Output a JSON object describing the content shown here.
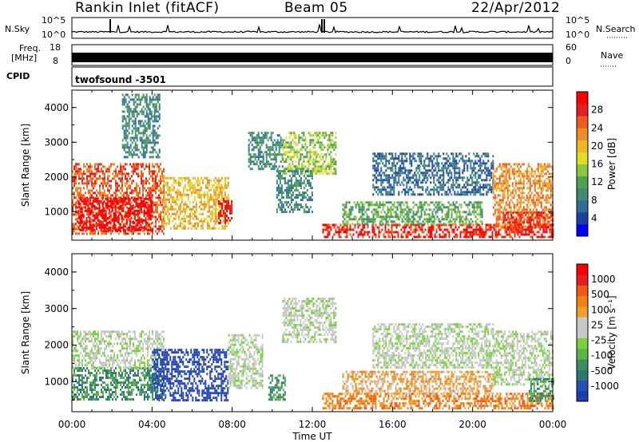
{
  "header": {
    "station": "Rankin Inlet (fitACF)",
    "beam": "Beam 05",
    "date": "22/Apr/2012"
  },
  "top_panels": {
    "nsky_label": "N.Sky",
    "nsky_ticks": [
      "10^5",
      "10^0"
    ],
    "nsearch_label": "N.Search",
    "nsearch_ticks": [
      "10^5",
      "10^0"
    ],
    "freq_label": "Freq.",
    "freq_unit": "[MHz]",
    "freq_ticks": [
      "18",
      "8"
    ],
    "nave_label": "Nave",
    "nave_ticks": [
      "60",
      "0"
    ],
    "cpid_label": "CPID",
    "cpid_value": "twofsound  -3501"
  },
  "chart_data": [
    {
      "type": "heatmap",
      "name": "power",
      "ylabel": "Slant Range [km]",
      "xlabel": "",
      "xlim": [
        "00:00",
        "24:00"
      ],
      "ylim": [
        180,
        4500
      ],
      "yticks": [
        1000,
        2000,
        3000,
        4000
      ],
      "xticks": [
        "00:00",
        "04:00",
        "08:00",
        "12:00",
        "16:00",
        "20:00",
        "00:00"
      ],
      "colorbar": {
        "label": "Power [dB]",
        "ticks": [
          "28",
          "24",
          "20",
          "16",
          "12",
          "8",
          "4"
        ],
        "colors": [
          "#0000ff",
          "#1f3fa0",
          "#2e6f9a",
          "#3f8a70",
          "#4fa050",
          "#8cc83c",
          "#e0dc28",
          "#f0b428",
          "#f08c28",
          "#f05a1e",
          "#e61e1e",
          "#ff0000"
        ]
      },
      "blobs": [
        {
          "t0": 0.0,
          "t1": 4.6,
          "r0": 400,
          "r1": 2400,
          "c": 9
        },
        {
          "t0": 0.3,
          "t1": 4.0,
          "r0": 500,
          "r1": 1400,
          "c": 11
        },
        {
          "t0": 4.5,
          "t1": 7.8,
          "r0": 500,
          "r1": 2000,
          "c": 7
        },
        {
          "t0": 7.3,
          "t1": 8.0,
          "r0": 700,
          "r1": 1400,
          "c": 11
        },
        {
          "t0": 2.5,
          "t1": 4.4,
          "r0": 2600,
          "r1": 4400,
          "c": 3
        },
        {
          "t0": 8.8,
          "t1": 10.5,
          "r0": 2200,
          "r1": 3300,
          "c": 3
        },
        {
          "t0": 10.5,
          "t1": 13.2,
          "r0": 2100,
          "r1": 3300,
          "c": 5
        },
        {
          "t0": 10.2,
          "t1": 12.0,
          "r0": 1000,
          "r1": 2200,
          "c": 3
        },
        {
          "t0": 12.5,
          "t1": 24.0,
          "r0": 250,
          "r1": 650,
          "c": 10
        },
        {
          "t0": 13.5,
          "t1": 20.5,
          "r0": 650,
          "r1": 1300,
          "c": 4
        },
        {
          "t0": 15.0,
          "t1": 21.0,
          "r0": 1500,
          "r1": 2700,
          "c": 2
        },
        {
          "t0": 21.0,
          "t1": 24.0,
          "r0": 600,
          "r1": 2400,
          "c": 8
        },
        {
          "t0": 21.5,
          "t1": 24.0,
          "r0": 400,
          "r1": 1000,
          "c": 10
        }
      ]
    },
    {
      "type": "heatmap",
      "name": "velocity",
      "ylabel": "Slant Range [km]",
      "xlabel": "Time UT",
      "xlim": [
        "00:00",
        "24:00"
      ],
      "ylim": [
        180,
        4500
      ],
      "yticks": [
        1000,
        2000,
        3000,
        4000
      ],
      "xticks": [
        "00:00",
        "04:00",
        "08:00",
        "12:00",
        "16:00",
        "20:00",
        "00:00"
      ],
      "colorbar": {
        "label": "Velocity [m s⁻¹]",
        "ticks": [
          "1000",
          "500",
          "100",
          "25",
          "-25",
          "-100",
          "-500",
          "-1000"
        ],
        "colors": [
          "#1e3cb4",
          "#2850b4",
          "#2a7870",
          "#3c8c64",
          "#5ab446",
          "#78d23c",
          "#c8c8c8",
          "#c8c8c8",
          "#f0a028",
          "#f08214",
          "#f05a14",
          "#e61e1e",
          "#ff0000"
        ]
      },
      "blobs": [
        {
          "t0": 0.0,
          "t1": 4.6,
          "r0": 500,
          "r1": 1400,
          "c": 3
        },
        {
          "t0": 0.0,
          "t1": 4.6,
          "r0": 1400,
          "r1": 2400,
          "c": 6
        },
        {
          "t0": 4.0,
          "t1": 7.8,
          "r0": 500,
          "r1": 1900,
          "c": 0
        },
        {
          "t0": 7.8,
          "t1": 9.5,
          "r0": 800,
          "r1": 2300,
          "c": 6
        },
        {
          "t0": 9.8,
          "t1": 10.6,
          "r0": 500,
          "r1": 1200,
          "c": 3
        },
        {
          "t0": 10.5,
          "t1": 13.2,
          "r0": 2100,
          "r1": 3300,
          "c": 6
        },
        {
          "t0": 12.5,
          "t1": 24.0,
          "r0": 250,
          "r1": 700,
          "c": 9
        },
        {
          "t0": 13.5,
          "t1": 21.0,
          "r0": 700,
          "r1": 1300,
          "c": 8
        },
        {
          "t0": 15.0,
          "t1": 21.0,
          "r0": 1400,
          "r1": 2600,
          "c": 6
        },
        {
          "t0": 21.0,
          "t1": 24.0,
          "r0": 900,
          "r1": 2400,
          "c": 6
        },
        {
          "t0": 22.8,
          "t1": 24.0,
          "r0": 500,
          "r1": 1100,
          "c": 3
        }
      ]
    }
  ]
}
